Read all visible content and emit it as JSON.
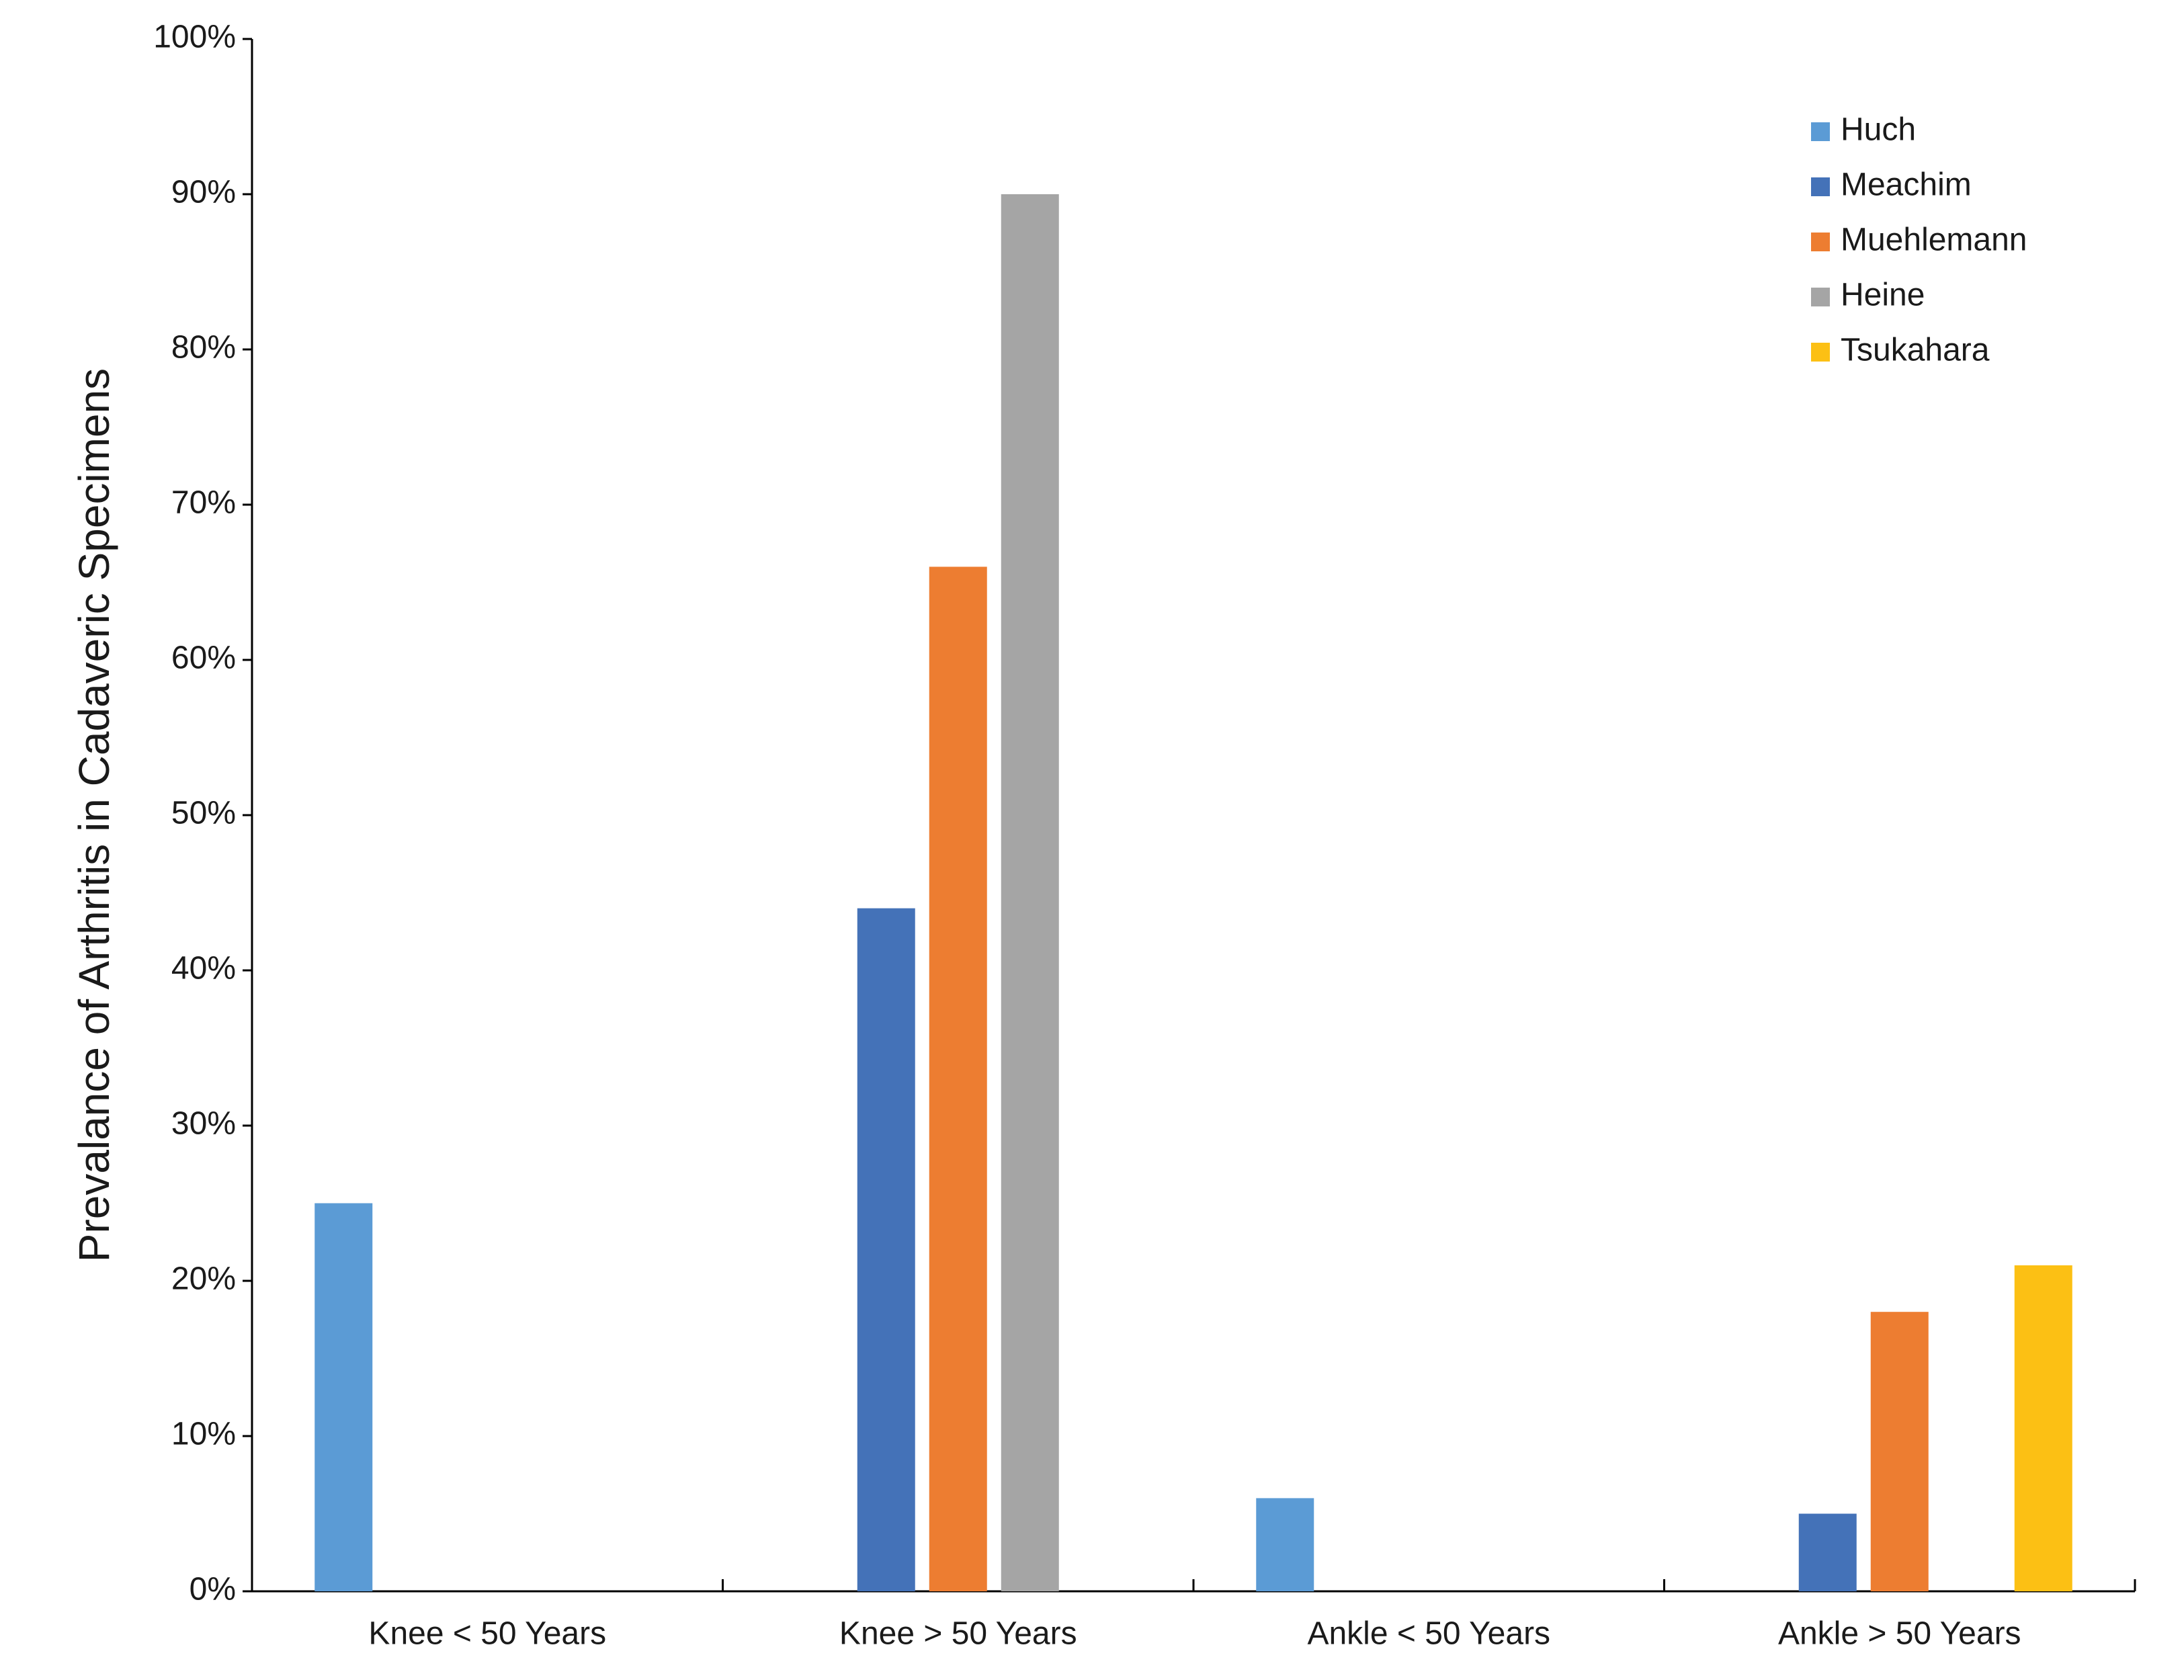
{
  "chart_data": {
    "type": "bar",
    "y_label": "Prevalance of Arthritis in Cadaveric Specimens",
    "categories": [
      "Knee < 50 Years",
      "Knee > 50 Years",
      "Ankle < 50 Years",
      "Ankle > 50 Years"
    ],
    "series": [
      {
        "name": "Huch",
        "color": "#5b9bd5",
        "values": [
          25,
          null,
          6,
          null
        ]
      },
      {
        "name": "Meachim",
        "color": "#4472b8",
        "values": [
          null,
          44,
          null,
          5
        ]
      },
      {
        "name": "Muehlemann",
        "color": "#ed7d31",
        "values": [
          null,
          66,
          null,
          18
        ]
      },
      {
        "name": "Heine",
        "color": "#a5a5a5",
        "values": [
          null,
          90,
          null,
          null
        ]
      },
      {
        "name": "Tsukahara",
        "color": "#fcc014",
        "values": [
          null,
          null,
          null,
          21
        ]
      }
    ],
    "ylim": [
      0,
      100
    ],
    "yticks": [
      {
        "value": 0,
        "label": "0%"
      },
      {
        "value": 10,
        "label": "10%"
      },
      {
        "value": 20,
        "label": "20%"
      },
      {
        "value": 30,
        "label": "30%"
      },
      {
        "value": 40,
        "label": "40%"
      },
      {
        "value": 50,
        "label": "50%"
      },
      {
        "value": 60,
        "label": "60%"
      },
      {
        "value": 70,
        "label": "70%"
      },
      {
        "value": 80,
        "label": "80%"
      },
      {
        "value": 90,
        "label": "90%"
      },
      {
        "value": 100,
        "label": "100%"
      }
    ],
    "grid": false,
    "legend": "upper right"
  }
}
